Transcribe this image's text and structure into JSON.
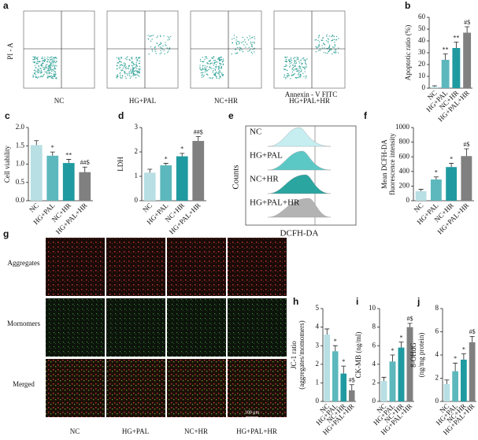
{
  "flow_cytometry": {
    "panel": "a",
    "y_label": "PI - A",
    "x_label": "Annexin - V FITC",
    "groups": [
      "NC",
      "HG+PAL",
      "NC+HR",
      "HG+PAL+HR"
    ]
  },
  "histogram_overlay": {
    "panel": "e",
    "y_label": "Counts",
    "x_label": "DCFH-DA",
    "groups": [
      "NC",
      "HG+PAL",
      "NC+HR",
      "HG+PAL+HR"
    ]
  },
  "fluorescence_images": {
    "panel": "g",
    "rows": [
      "Aggregates",
      "Mornomers",
      "Merged"
    ],
    "columns": [
      "NC",
      "HG+PAL",
      "NC+HR",
      "HG+PAL+HR"
    ],
    "scale_bar": "100 μm"
  },
  "chart_data": [
    {
      "type": "bar",
      "panel": "b",
      "y_label": [
        "Apoptotic ratio (%)"
      ],
      "categories": [
        "NC",
        "HG+PAL",
        "NC+HR",
        "HG+PAL+HR"
      ],
      "values": [
        1,
        24,
        34,
        47
      ],
      "errors": [
        1,
        5,
        5,
        5
      ],
      "annotations": [
        "",
        "**",
        "**",
        "#$"
      ],
      "colors": [
        "#b8dfe3",
        "#5cb8bd",
        "#1f9aa0",
        "#808080"
      ],
      "ylim": [
        0,
        60
      ],
      "yticks": [
        0,
        10,
        20,
        30,
        40,
        50,
        60
      ]
    },
    {
      "type": "bar",
      "panel": "c",
      "y_label": [
        "Cell viability"
      ],
      "categories": [
        "NC",
        "HG+PAL",
        "NC+HR",
        "HG+PAL+HR"
      ],
      "values": [
        1.52,
        1.23,
        1.03,
        0.78
      ],
      "errors": [
        0.12,
        0.1,
        0.1,
        0.14
      ],
      "annotations": [
        "",
        "*",
        "**",
        "##$"
      ],
      "colors": [
        "#b8dfe3",
        "#5cb8bd",
        "#1f9aa0",
        "#808080"
      ],
      "ylim": [
        0,
        2
      ],
      "yticks": [
        {
          "value": 0,
          "label": "0.0"
        },
        {
          "value": 0.5,
          "label": "0.5"
        },
        {
          "value": 1,
          "label": "1.0"
        },
        {
          "value": 1.5,
          "label": "1.5"
        },
        {
          "value": 2,
          "label": "2.0"
        }
      ]
    },
    {
      "type": "bar",
      "panel": "d",
      "y_label": [
        "LDH"
      ],
      "categories": [
        "NC",
        "HG+PAL",
        "NC+HR",
        "HG+PAL+HR"
      ],
      "values": [
        1.15,
        1.45,
        1.82,
        2.45
      ],
      "errors": [
        0.14,
        0.08,
        0.12,
        0.18
      ],
      "annotations": [
        "",
        "*",
        "*",
        "##$"
      ],
      "colors": [
        "#b8dfe3",
        "#5cb8bd",
        "#1f9aa0",
        "#808080"
      ],
      "ylim": [
        0,
        3
      ],
      "yticks": [
        0,
        1,
        2,
        3
      ]
    },
    {
      "type": "bar",
      "panel": "f",
      "y_label": [
        "Mean DCFH-DA",
        "fluorescence intensity"
      ],
      "categories": [
        "NC",
        "HG+PAL",
        "NC+HR",
        "HG+PAL+HR"
      ],
      "values": [
        130,
        290,
        460,
        610
      ],
      "errors": [
        25,
        35,
        50,
        100
      ],
      "annotations": [
        "",
        "*",
        "*",
        "#$"
      ],
      "colors": [
        "#b8dfe3",
        "#5cb8bd",
        "#1f9aa0",
        "#808080"
      ],
      "ylim": [
        0,
        1000
      ],
      "yticks": [
        0,
        200,
        400,
        600,
        800,
        1000
      ]
    },
    {
      "type": "bar",
      "panel": "h",
      "y_label": [
        "JC-1 ratio",
        "(aggregates/momomers)"
      ],
      "categories": [
        "NC",
        "HG+PAL",
        "NC+HR",
        "HG+PAL+HR"
      ],
      "values": [
        3.6,
        2.7,
        1.5,
        0.6
      ],
      "errors": [
        0.3,
        0.3,
        0.4,
        0.3
      ],
      "annotations": [
        "",
        "*",
        "*",
        "#$"
      ],
      "colors": [
        "#b8dfe3",
        "#5cb8bd",
        "#1f9aa0",
        "#808080"
      ],
      "ylim": [
        0,
        5
      ],
      "yticks": [
        0,
        1,
        2,
        3,
        4,
        5
      ]
    },
    {
      "type": "bar",
      "panel": "i",
      "y_label": [
        "CK-MB (ng/ml)"
      ],
      "categories": [
        "NC",
        "HG+PAL",
        "NC+HR",
        "HG+PAL+HR"
      ],
      "values": [
        2.2,
        4.3,
        5.8,
        8.0
      ],
      "errors": [
        0.4,
        0.7,
        0.6,
        0.4
      ],
      "annotations": [
        "",
        "*",
        "*",
        "#$"
      ],
      "colors": [
        "#b8dfe3",
        "#5cb8bd",
        "#1f9aa0",
        "#808080"
      ],
      "ylim": [
        0,
        10
      ],
      "yticks": [
        0,
        2,
        4,
        6,
        8,
        10
      ]
    },
    {
      "type": "bar",
      "panel": "j",
      "y_label": [
        "8-OHdG",
        "(ng/mg protein)"
      ],
      "categories": [
        "NC",
        "HG+PAL",
        "NC+HR",
        "HG+PAL+HR"
      ],
      "values": [
        1.5,
        2.6,
        3.6,
        5.1
      ],
      "errors": [
        0.35,
        0.7,
        0.5,
        0.5
      ],
      "annotations": [
        "",
        "*",
        "*",
        "#$"
      ],
      "colors": [
        "#b8dfe3",
        "#5cb8bd",
        "#1f9aa0",
        "#808080"
      ],
      "ylim": [
        0,
        8
      ],
      "yticks": [
        0,
        2,
        4,
        6,
        8
      ]
    }
  ]
}
